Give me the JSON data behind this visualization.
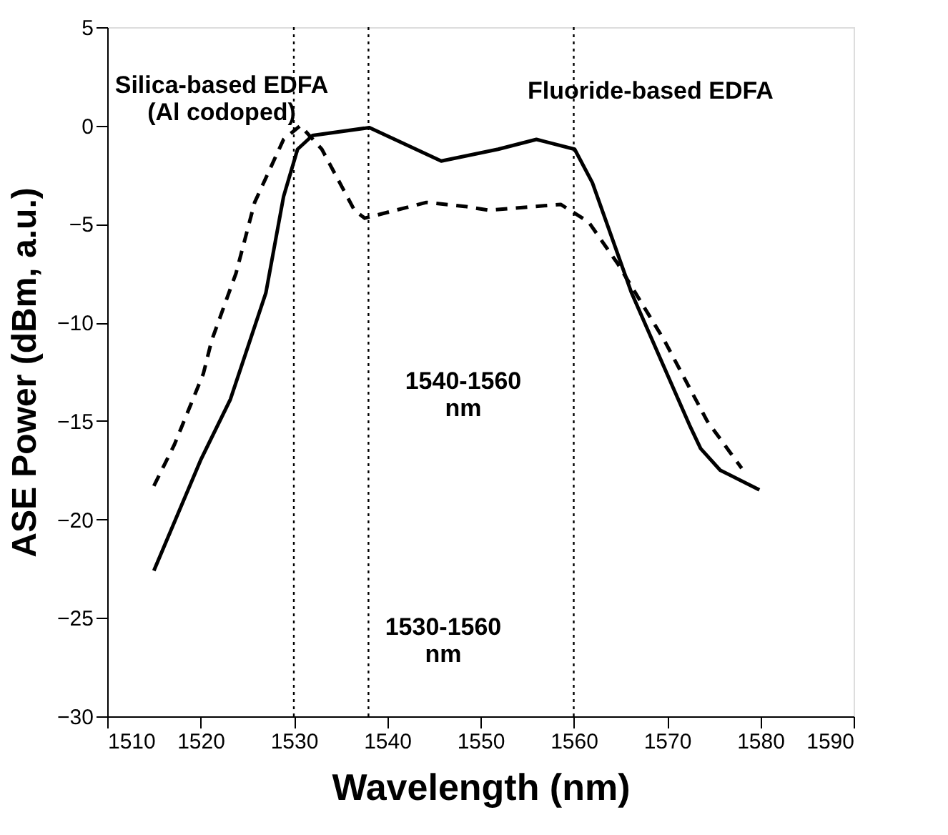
{
  "chart_data": {
    "type": "line",
    "xlabel": "Wavelength (nm)",
    "ylabel": "ASE Power (dBm, a.u.)",
    "series": [
      {
        "color": "#000000",
        "line_style": "dashed",
        "x": [
          1515,
          1517.2,
          1520.3,
          1521.2,
          1523.8,
          1525.8,
          1528.9,
          1530.7,
          1533,
          1536.5,
          1537.6,
          1544.2,
          1548.3,
          1550.9,
          1558.6,
          1561.6,
          1564.7,
          1569.7,
          1574.3,
          1578
        ],
        "values": [
          -18.3,
          -16.2,
          -12.6,
          -10.9,
          -7.5,
          -3.9,
          -0.7,
          0,
          -1.2,
          -4.3,
          -4.7,
          -3.9,
          -4.1,
          -4.3,
          -4.0,
          -4.9,
          -7.0,
          -10.9,
          -15.0,
          -17.4
        ]
      },
      {
        "color": "#000000",
        "line_style": "solid",
        "x": [
          1515,
          1520,
          1523.2,
          1527,
          1528.9,
          1530.4,
          1532,
          1538.1,
          1545.8,
          1551.9,
          1556,
          1560.1,
          1562,
          1566.2,
          1572.4,
          1573.6,
          1575.7,
          1579.9
        ],
        "values": [
          -22.6,
          -17,
          -13.9,
          -8.5,
          -3.6,
          -1.2,
          -0.5,
          -0.1,
          -1.8,
          -1.2,
          -0.7,
          -1.2,
          -2.9,
          -8.5,
          -15.2,
          -16.4,
          -17.5,
          -18.5
        ]
      }
    ],
    "xlim": [
      1510,
      1590
    ],
    "xticks": [
      1510,
      1520,
      1530,
      1540,
      1550,
      1560,
      1570,
      1580,
      1590
    ],
    "ylim": [
      -30,
      5
    ],
    "yticks": [
      -30,
      -25,
      -20,
      -15,
      -10,
      -5,
      0,
      5
    ],
    "ref_lines": [
      {
        "axis": "x",
        "value": 1530,
        "line_style": "dotted",
        "color": "#000000"
      },
      {
        "axis": "x",
        "value": 1538,
        "line_style": "dotted",
        "color": "#000000"
      },
      {
        "axis": "x",
        "value": 1560,
        "line_style": "dotted",
        "color": "#000000"
      }
    ],
    "annotations": [
      "Silica-based EDFA\n(Al codoped)",
      "Fluoride-based EDFA",
      "1540-1560\nnm",
      "1530-1560\nnm"
    ],
    "grid": false,
    "marker": "none"
  }
}
